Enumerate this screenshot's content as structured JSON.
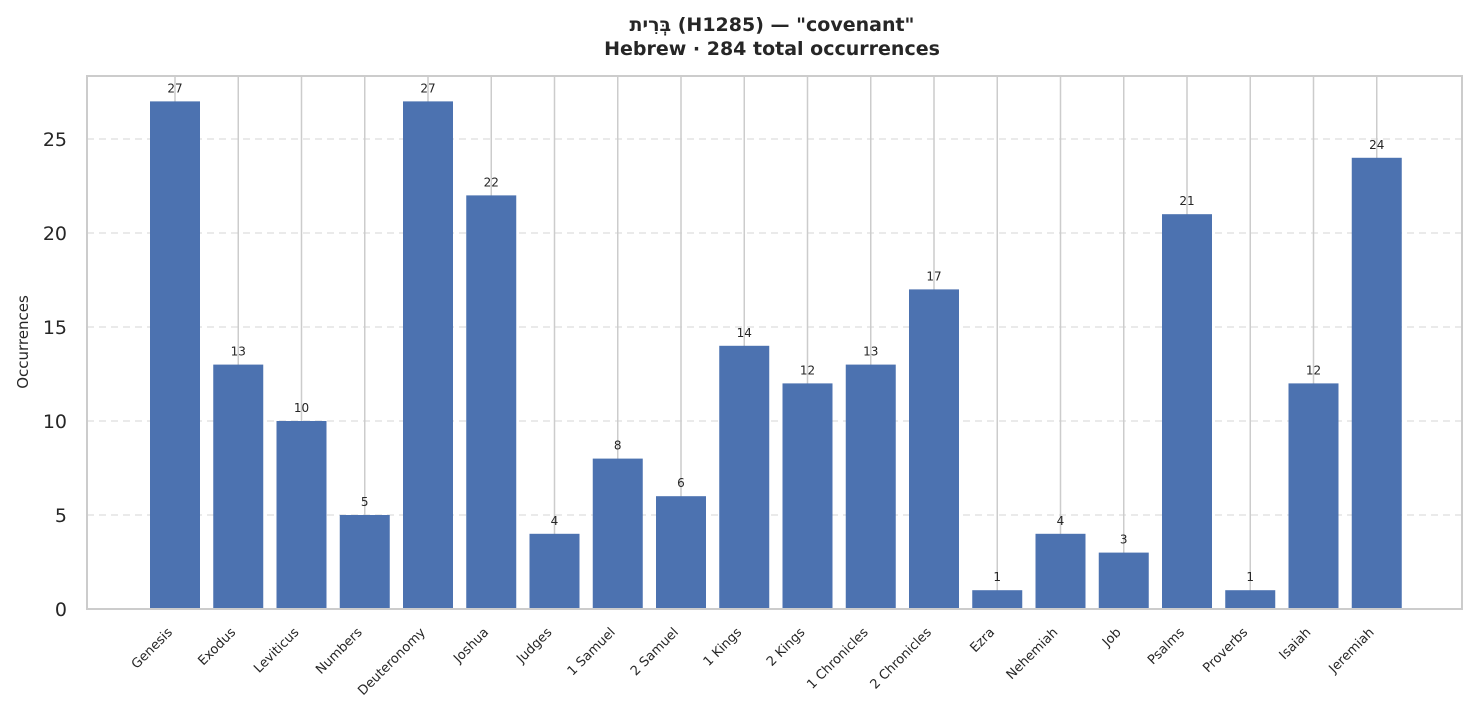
{
  "chart_data": {
    "type": "bar",
    "title": "בְּרִית (H1285)  —  \"covenant\"",
    "subtitle": "Hebrew · 284 total occurrences",
    "xlabel": "",
    "ylabel": "Occurrences",
    "ylim": [
      0,
      28.35
    ],
    "yticks": [
      0,
      5,
      10,
      15,
      20,
      25
    ],
    "grid": true,
    "categories": [
      "Genesis",
      "Exodus",
      "Leviticus",
      "Numbers",
      "Deuteronomy",
      "Joshua",
      "Judges",
      "1 Samuel",
      "2 Samuel",
      "1 Kings",
      "2 Kings",
      "1 Chronicles",
      "2 Chronicles",
      "Ezra",
      "Nehemiah",
      "Job",
      "Psalms",
      "Proverbs",
      "Isaiah",
      "Jeremiah"
    ],
    "values": [
      27,
      13,
      10,
      5,
      27,
      22,
      4,
      8,
      6,
      14,
      12,
      13,
      17,
      1,
      4,
      3,
      21,
      1,
      12,
      24
    ],
    "colors": {
      "bar": "#4c72b0",
      "grid": "#e3e3e3",
      "axis": "#cccccc",
      "text": "#262626"
    }
  }
}
